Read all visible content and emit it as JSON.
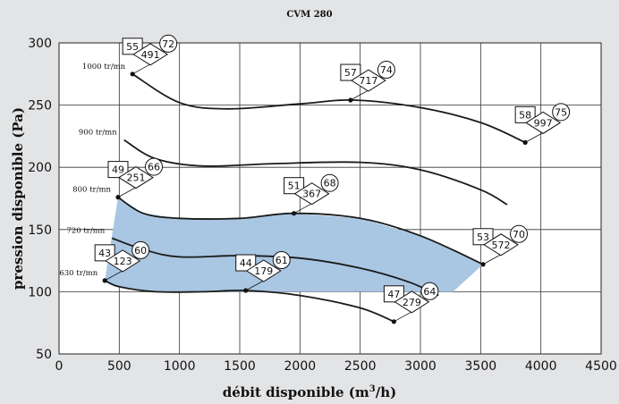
{
  "chart_data": {
    "type": "line",
    "title": "CVM 280",
    "xlabel": "débit disponible (m",
    "xlabel_sup": "3",
    "xlabel_end": "/h)",
    "ylabel": "pression disponible (Pa)",
    "xlim": [
      0,
      4500
    ],
    "ylim": [
      50,
      300
    ],
    "x_ticks": [
      0,
      500,
      1000,
      1500,
      2000,
      2500,
      3000,
      3500,
      4000,
      4500
    ],
    "y_ticks": [
      50,
      100,
      150,
      200,
      250,
      300
    ],
    "grid": true,
    "region_color": "#a9c6e2",
    "curve_color": "#1a1a1a",
    "series": [
      {
        "name": "1000 tr/mn",
        "x": [
          610,
          1000,
          1400,
          2000,
          2450,
          3000,
          3500,
          3870
        ],
        "y": [
          275,
          252,
          247,
          251,
          254,
          248,
          236,
          220
        ]
      },
      {
        "name": "900 tr/mn",
        "x": [
          540,
          800,
          1200,
          1800,
          2500,
          3000,
          3500,
          3720
        ],
        "y": [
          222,
          207,
          201,
          203,
          204,
          198,
          182,
          170
        ]
      },
      {
        "name": "800 tr/mn",
        "x": [
          490,
          700,
          1000,
          1500,
          1950,
          2500,
          3000,
          3520
        ],
        "y": [
          176,
          163,
          159,
          159,
          163,
          159,
          145,
          122
        ]
      },
      {
        "name": "720 tr/mn",
        "x": [
          440,
          700,
          1000,
          1500,
          2000,
          2500,
          2900,
          3150
        ],
        "y": [
          143,
          134,
          128,
          129,
          127,
          119,
          108,
          97
        ]
      },
      {
        "name": "630 tr/mn",
        "x": [
          380,
          500,
          800,
          1200,
          1550,
          2000,
          2500,
          2780
        ],
        "y": [
          109,
          104,
          100,
          100,
          101,
          97,
          87,
          76
        ]
      }
    ],
    "operating_zone": [
      [
        490,
        176
      ],
      [
        700,
        163
      ],
      [
        1000,
        159
      ],
      [
        1500,
        159
      ],
      [
        1950,
        163
      ],
      [
        2500,
        159
      ],
      [
        3000,
        145
      ],
      [
        3520,
        122
      ],
      [
        3270,
        100
      ],
      [
        1550,
        100
      ],
      [
        1200,
        100
      ],
      [
        800,
        100
      ],
      [
        500,
        104
      ],
      [
        380,
        109
      ]
    ],
    "points": [
      {
        "x": 610,
        "y": 275,
        "box": "55",
        "diamond": "491",
        "circle": "72"
      },
      {
        "x": 2420,
        "y": 254,
        "box": "57",
        "diamond": "717",
        "circle": "74"
      },
      {
        "x": 3870,
        "y": 220,
        "box": "58",
        "diamond": "997",
        "circle": "75"
      },
      {
        "x": 490,
        "y": 176,
        "box": "49",
        "diamond": "251",
        "circle": "66"
      },
      {
        "x": 1950,
        "y": 163,
        "box": "51",
        "diamond": "367",
        "circle": "68"
      },
      {
        "x": 3520,
        "y": 122,
        "box": "53",
        "diamond": "572",
        "circle": "70"
      },
      {
        "x": 380,
        "y": 109,
        "box": "43",
        "diamond": "123",
        "circle": "60"
      },
      {
        "x": 1550,
        "y": 101,
        "box": "44",
        "diamond": "179",
        "circle": "61"
      },
      {
        "x": 2780,
        "y": 76,
        "box": "47",
        "diamond": "279",
        "circle": "64"
      }
    ]
  }
}
